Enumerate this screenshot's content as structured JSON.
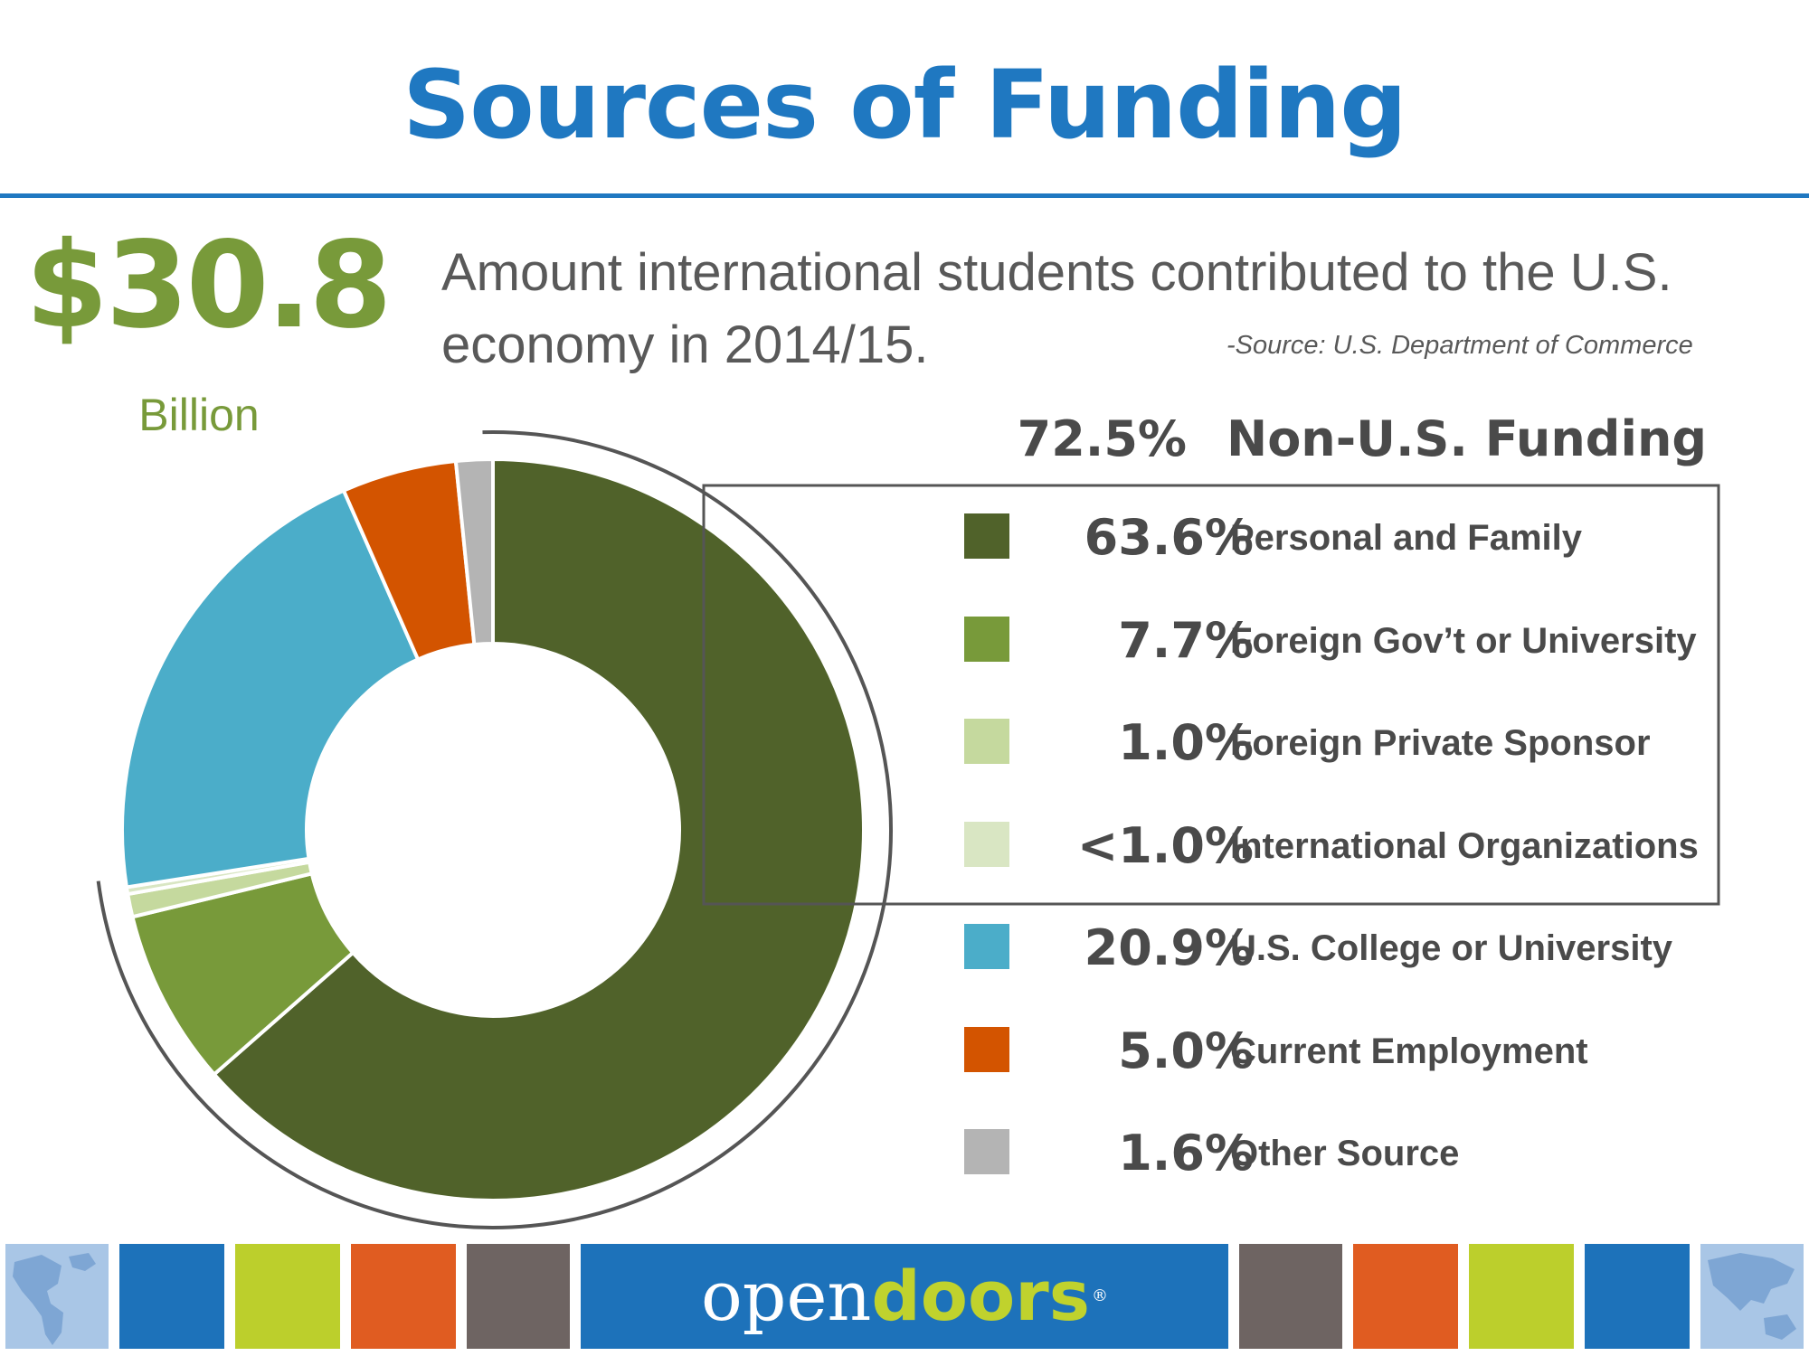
{
  "header": {
    "title": "Sources of Funding"
  },
  "headline": {
    "amount": "$30.8",
    "unit": "Billion",
    "description": "Amount international students contributed to the U.S. economy in 2014/15.",
    "source": "-Source: U.S. Department of Commerce"
  },
  "colors": {
    "title_blue": "#1f78c1",
    "accent_green": "#789a3a",
    "text_gray": "#4a4a4a"
  },
  "chart_data": {
    "type": "donut",
    "title": "Sources of Funding",
    "unit": "%",
    "group": {
      "label": "Non-U.S. Funding",
      "value_label": "72.5%",
      "value": 72.5
    },
    "categories": [
      "Personal and Family",
      "Foreign Gov’t or University",
      "Foreign Private Sponsor",
      "International Organizations",
      "U.S. College or University",
      "Current Employment",
      "Other Source"
    ],
    "values": [
      63.6,
      7.7,
      1.0,
      0.3,
      20.9,
      5.0,
      1.6
    ],
    "value_labels": [
      "63.6%",
      "7.7%",
      "1.0%",
      "<1.0%",
      "20.9%",
      "5.0%",
      "1.6%"
    ],
    "colors": [
      "#50622a",
      "#789a3a",
      "#c5d99e",
      "#d9e6c3",
      "#4badc9",
      "#d35400",
      "#b4b4b4"
    ],
    "grouped_in_non_us": [
      true,
      true,
      true,
      true,
      false,
      false,
      false
    ],
    "legend_position": "right"
  },
  "footer": {
    "logo_open": "open",
    "logo_doors": "doors",
    "logo_mark": "®",
    "tile_colors": [
      "#1d72ba",
      "#bccf2c",
      "#e05c21",
      "#6e6462"
    ]
  }
}
